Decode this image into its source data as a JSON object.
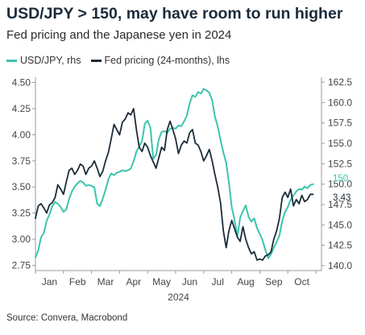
{
  "chart_data": {
    "type": "line",
    "title": "USD/JPY > 150, may have room to run higher",
    "subtitle": "Fed pricing and the Japanese yen in 2024",
    "source": "Source: Convera, Macrobond",
    "year_label": "2024",
    "months": [
      "Jan",
      "Feb",
      "Mar",
      "Apr",
      "May",
      "Jun",
      "Jul",
      "Aug",
      "Sep",
      "Oct"
    ],
    "left_axis": {
      "ticks": [
        "2.75",
        "3.00",
        "3.25",
        "3.50",
        "3.75",
        "4.00",
        "4.25",
        "4.50"
      ],
      "min": 2.75,
      "max": 4.5,
      "range": [
        2.7,
        4.55
      ]
    },
    "right_axis": {
      "ticks": [
        "140.0",
        "142.5",
        "145.0",
        "147.5",
        "150.0",
        "152.5",
        "155.0",
        "157.5",
        "160.0",
        "162.5"
      ],
      "min": 140,
      "max": 162.5,
      "range": [
        139.4,
        163.1
      ]
    },
    "x_range": [
      0,
      10.2
    ],
    "grid": false,
    "legend_position": "top-left",
    "end_labels": {
      "usdjpy": "150",
      "fed": "3.43"
    },
    "series": [
      {
        "name": "USD/JPY, rhs",
        "axis": "right",
        "color": "#3cc4ad",
        "x": [
          0,
          0.1,
          0.2,
          0.3,
          0.4,
          0.5,
          0.6,
          0.7,
          0.8,
          0.9,
          1.0,
          1.1,
          1.2,
          1.3,
          1.4,
          1.5,
          1.6,
          1.7,
          1.8,
          1.9,
          2.0,
          2.1,
          2.2,
          2.3,
          2.4,
          2.5,
          2.6,
          2.7,
          2.8,
          2.9,
          3.0,
          3.1,
          3.2,
          3.3,
          3.4,
          3.5,
          3.6,
          3.7,
          3.8,
          3.9,
          4.0,
          4.1,
          4.2,
          4.3,
          4.4,
          4.5,
          4.6,
          4.7,
          4.8,
          4.9,
          5.0,
          5.1,
          5.2,
          5.3,
          5.4,
          5.5,
          5.6,
          5.7,
          5.8,
          5.9,
          6.0,
          6.1,
          6.2,
          6.3,
          6.4,
          6.5,
          6.6,
          6.7,
          6.8,
          6.9,
          7.0,
          7.1,
          7.2,
          7.3,
          7.4,
          7.5,
          7.6,
          7.7,
          7.8,
          7.9,
          8.0,
          8.1,
          8.2,
          8.3,
          8.4,
          8.5,
          8.6,
          8.7,
          8.8,
          8.9,
          9.0,
          9.1,
          9.2,
          9.3,
          9.4,
          9.5,
          9.6,
          9.7,
          9.8,
          9.9
        ],
        "values": [
          141.0,
          141.9,
          143.5,
          144.0,
          145.5,
          146.3,
          147.3,
          147.8,
          147.6,
          147.2,
          146.6,
          146.9,
          148.2,
          149.1,
          149.7,
          150.1,
          150.4,
          150.2,
          149.8,
          149.9,
          149.8,
          149.6,
          147.6,
          147.3,
          148.2,
          149.3,
          150.6,
          151.3,
          151.1,
          151.4,
          151.5,
          151.7,
          151.6,
          151.7,
          151.9,
          152.8,
          154.0,
          154.6,
          155.3,
          157.4,
          157.8,
          156.9,
          153.1,
          153.6,
          155.5,
          156.4,
          156.5,
          156.3,
          156.8,
          156.9,
          156.8,
          157.2,
          157.1,
          157.7,
          158.4,
          159.9,
          160.9,
          160.7,
          161.3,
          161.1,
          161.7,
          161.5,
          161.2,
          160.3,
          158.3,
          157.1,
          155.4,
          153.9,
          152.6,
          150.2,
          147.2,
          145.6,
          143.6,
          145.9,
          146.7,
          147.4,
          146.0,
          145.4,
          145.8,
          144.6,
          143.9,
          143.1,
          141.9,
          140.9,
          141.4,
          142.2,
          142.9,
          143.7,
          145.5,
          146.6,
          147.2,
          148.1,
          148.6,
          149.1,
          149.4,
          149.3,
          149.7,
          149.5,
          149.9,
          150.0
        ]
      },
      {
        "name": "Fed pricing (24-months), lhs",
        "axis": "left",
        "color": "#1c2b3a",
        "x": [
          0,
          0.1,
          0.2,
          0.3,
          0.4,
          0.5,
          0.6,
          0.7,
          0.8,
          0.9,
          1.0,
          1.1,
          1.2,
          1.3,
          1.4,
          1.5,
          1.6,
          1.7,
          1.8,
          1.9,
          2.0,
          2.1,
          2.2,
          2.3,
          2.4,
          2.5,
          2.6,
          2.7,
          2.8,
          2.9,
          3.0,
          3.1,
          3.2,
          3.3,
          3.4,
          3.5,
          3.6,
          3.7,
          3.8,
          3.9,
          4.0,
          4.1,
          4.2,
          4.3,
          4.4,
          4.5,
          4.6,
          4.7,
          4.8,
          4.9,
          5.0,
          5.1,
          5.2,
          5.3,
          5.4,
          5.5,
          5.6,
          5.7,
          5.8,
          5.9,
          6.0,
          6.1,
          6.2,
          6.3,
          6.4,
          6.5,
          6.6,
          6.7,
          6.8,
          6.9,
          7.0,
          7.1,
          7.2,
          7.3,
          7.4,
          7.5,
          7.6,
          7.7,
          7.8,
          7.9,
          8.0,
          8.1,
          8.2,
          8.3,
          8.4,
          8.5,
          8.6,
          8.7,
          8.8,
          8.9,
          9.0,
          9.1,
          9.2,
          9.3,
          9.4,
          9.5,
          9.6,
          9.7,
          9.8,
          9.9
        ],
        "values": [
          3.2,
          3.32,
          3.34,
          3.3,
          3.25,
          3.33,
          3.35,
          3.4,
          3.52,
          3.48,
          3.43,
          3.55,
          3.66,
          3.68,
          3.62,
          3.66,
          3.72,
          3.7,
          3.62,
          3.68,
          3.7,
          3.75,
          3.68,
          3.6,
          3.65,
          3.75,
          3.83,
          3.96,
          4.1,
          4.05,
          4.0,
          4.12,
          4.15,
          4.21,
          4.19,
          4.25,
          4.05,
          3.88,
          3.84,
          3.92,
          3.88,
          3.8,
          3.74,
          3.68,
          3.78,
          3.88,
          3.85,
          4.05,
          4.13,
          4.05,
          3.96,
          3.82,
          3.9,
          3.94,
          3.92,
          4.02,
          4.05,
          3.92,
          3.9,
          3.84,
          3.75,
          3.8,
          3.86,
          3.75,
          3.62,
          3.5,
          3.35,
          3.08,
          2.92,
          3.08,
          3.18,
          3.1,
          3.02,
          2.98,
          3.12,
          3.0,
          2.92,
          2.86,
          2.88,
          2.8,
          2.81,
          2.8,
          2.84,
          2.85,
          2.88,
          3.0,
          3.08,
          3.2,
          3.4,
          3.45,
          3.4,
          3.48,
          3.32,
          3.38,
          3.34,
          3.42,
          3.36,
          3.38,
          3.43,
          3.43
        ]
      }
    ]
  }
}
